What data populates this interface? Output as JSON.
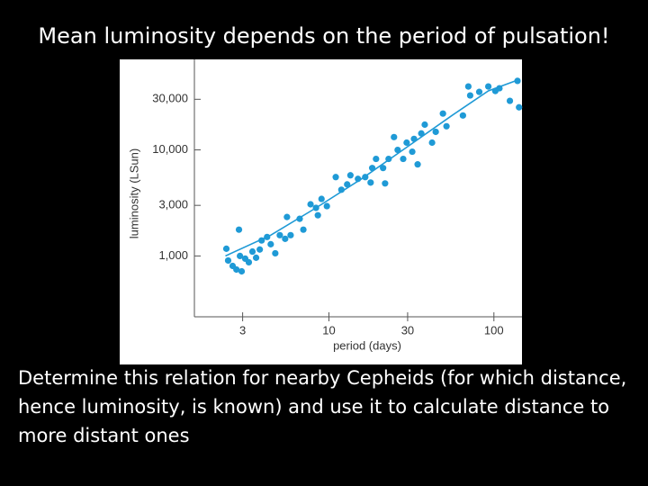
{
  "slide": {
    "title": "Mean luminosity depends on the period of pulsation!",
    "body": "Determine this relation for nearby Cepheids (for which distance, hence luminosity, is known) and use it to calculate distance to more distant ones"
  },
  "chart_data": {
    "type": "scatter",
    "xlabel": "period (days)",
    "ylabel": "luminosity (LSun)",
    "xscale": "log",
    "yscale": "log",
    "xlim": [
      1.53,
      148
    ],
    "ylim": [
      267,
      71300
    ],
    "xticks": [
      3,
      10,
      30,
      100
    ],
    "yticks": [
      {
        "value": 1000,
        "label": "1,000"
      },
      {
        "value": 3000,
        "label": "3,000"
      },
      {
        "value": 10000,
        "label": "10,000"
      },
      {
        "value": 30000,
        "label": "30,000"
      }
    ],
    "series": [
      {
        "type": "scatter",
        "color": "#1f9ad6",
        "x": [
          2.39,
          2.85,
          2.45,
          2.61,
          2.75,
          2.96,
          2.89,
          3.11,
          3.27,
          3.44,
          3.62,
          3.81,
          3.91,
          4.22,
          4.44,
          4.73,
          5.04,
          5.43,
          5.57,
          5.86,
          6.65,
          7.0,
          7.74,
          8.35,
          8.57,
          9.02,
          9.72,
          11.0,
          11.9,
          12.9,
          13.5,
          15.0,
          16.6,
          17.9,
          18.3,
          19.3,
          21.3,
          21.9,
          23.0,
          24.8,
          26.1,
          28.2,
          29.6,
          32.0,
          32.8,
          34.5,
          36.3,
          38.1,
          42.2,
          44.4,
          49.1,
          51.6,
          64.9,
          70.0,
          71.8,
          81.5,
          92.5,
          102,
          108,
          125,
          139,
          142
        ],
        "values": [
          1170,
          1770,
          906,
          805,
          745,
          716,
          1000,
          943,
          872,
          1100,
          962,
          1150,
          1400,
          1510,
          1290,
          1060,
          1570,
          1450,
          2330,
          1570,
          2240,
          1770,
          3070,
          2840,
          2420,
          3450,
          2950,
          5540,
          4210,
          4730,
          5760,
          5330,
          5540,
          4920,
          6750,
          8220,
          6750,
          4830,
          8220,
          13200,
          10000,
          8220,
          11700,
          9610,
          12700,
          7300,
          14300,
          17300,
          11700,
          14800,
          22000,
          16700,
          21100,
          39600,
          32600,
          35200,
          39600,
          35900,
          38100,
          29000,
          44700,
          25200
        ]
      },
      {
        "type": "line",
        "color": "#1f9ad6",
        "x": [
          2.36,
          4.44,
          8.35,
          15.7,
          29.6,
          55.7,
          92.5,
          144
        ],
        "values": [
          1000,
          1570,
          2840,
          5320,
          10600,
          21100,
          36000,
          46400
        ]
      }
    ]
  }
}
